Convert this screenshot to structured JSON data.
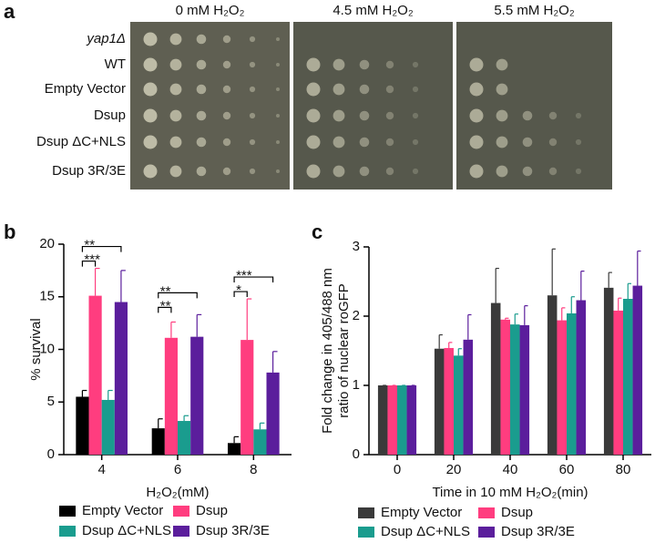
{
  "figure": {
    "panel_labels": [
      "a",
      "b",
      "c"
    ],
    "panel_a": {
      "columns": [
        "0 mM H₂O₂",
        "4.5 mM H₂O₂",
        "5.5 mM H₂O₂"
      ],
      "rows": [
        "yap1Δ",
        "WT",
        "Empty Vector",
        "Dsup",
        "Dsup ΔC+NLS",
        "Dsup 3R/3E"
      ]
    }
  },
  "chart_data": [
    {
      "type": "bar",
      "ylabel": "% survival",
      "xlabel": "H₂O₂(mM)",
      "categories": [
        "4",
        "6",
        "8"
      ],
      "ylim": [
        0,
        20
      ],
      "yticks": [
        0,
        5,
        10,
        15,
        20
      ],
      "series": [
        {
          "name": "Empty Vector",
          "color": "#000000",
          "values": [
            5.5,
            2.5,
            1.1
          ],
          "errors": [
            0.6,
            0.9,
            0.6
          ]
        },
        {
          "name": "Dsup",
          "color": "#ff3d7f",
          "values": [
            15.1,
            11.1,
            10.9
          ],
          "errors": [
            2.6,
            1.5,
            3.9
          ]
        },
        {
          "name": "Dsup ΔC+NLS",
          "color": "#1a9c8e",
          "values": [
            5.2,
            3.2,
            2.4
          ],
          "errors": [
            0.9,
            0.5,
            0.6
          ]
        },
        {
          "name": "Dsup 3R/3E",
          "color": "#5b1e9c",
          "values": [
            14.5,
            11.2,
            7.8
          ],
          "errors": [
            3.0,
            2.1,
            2.0
          ]
        }
      ],
      "comparisons": [
        {
          "label": "***",
          "category": "4",
          "between": [
            "Empty Vector",
            "Dsup"
          ]
        },
        {
          "label": "**",
          "category": "4",
          "between": [
            "Empty Vector",
            "Dsup 3R/3E"
          ]
        },
        {
          "label": "**",
          "category": "6",
          "between": [
            "Empty Vector",
            "Dsup"
          ]
        },
        {
          "label": "**",
          "category": "6",
          "between": [
            "Empty Vector",
            "Dsup 3R/3E"
          ]
        },
        {
          "label": "*",
          "category": "8",
          "between": [
            "Empty Vector",
            "Dsup"
          ]
        },
        {
          "label": "***",
          "category": "8",
          "between": [
            "Empty Vector",
            "Dsup 3R/3E"
          ]
        }
      ]
    },
    {
      "type": "bar",
      "ylabel": [
        "Fold change in 405/488 nm",
        "ratio of nuclear roGFP"
      ],
      "xlabel": "Time in 10 mM H₂O₂(min)",
      "categories": [
        "0",
        "20",
        "40",
        "60",
        "80"
      ],
      "ylim": [
        0,
        3
      ],
      "yticks": [
        0,
        1,
        2,
        3
      ],
      "series": [
        {
          "name": "Empty Vector",
          "color": "#3a3a3a",
          "values": [
            1,
            1.53,
            2.19,
            2.3,
            2.41
          ],
          "errors": [
            0,
            0.2,
            0.5,
            0.67,
            0.22
          ]
        },
        {
          "name": "Dsup",
          "color": "#ff3d7f",
          "values": [
            1,
            1.54,
            1.95,
            1.94,
            2.08
          ],
          "errors": [
            0,
            0.08,
            0.02,
            0.18,
            0.18
          ]
        },
        {
          "name": "Dsup ΔC+NLS",
          "color": "#1a9c8e",
          "values": [
            1,
            1.43,
            1.88,
            2.04,
            2.25
          ],
          "errors": [
            0,
            0.1,
            0.15,
            0.24,
            0.22
          ]
        },
        {
          "name": "Dsup 3R/3E",
          "color": "#5b1e9c",
          "values": [
            1,
            1.66,
            1.87,
            2.23,
            2.44
          ],
          "errors": [
            0,
            0.36,
            0.28,
            0.42,
            0.5
          ]
        }
      ]
    }
  ]
}
